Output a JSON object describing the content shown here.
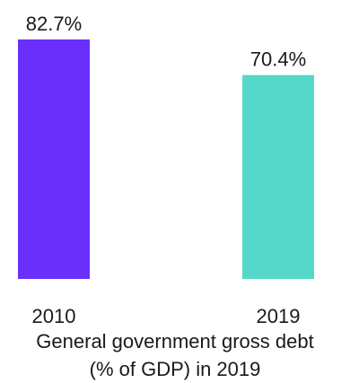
{
  "chart_data": {
    "type": "bar",
    "categories": [
      "2010",
      "2019"
    ],
    "values": [
      82.7,
      70.4
    ],
    "value_labels": [
      "82.7%",
      "70.4%"
    ],
    "colors": [
      "#6a2ff9",
      "#55d8c9"
    ],
    "caption": [
      "General government gross debt",
      "(% of GDP) in 2019"
    ],
    "ylim": [
      0,
      82.7
    ],
    "grid": false,
    "legend": "none"
  }
}
